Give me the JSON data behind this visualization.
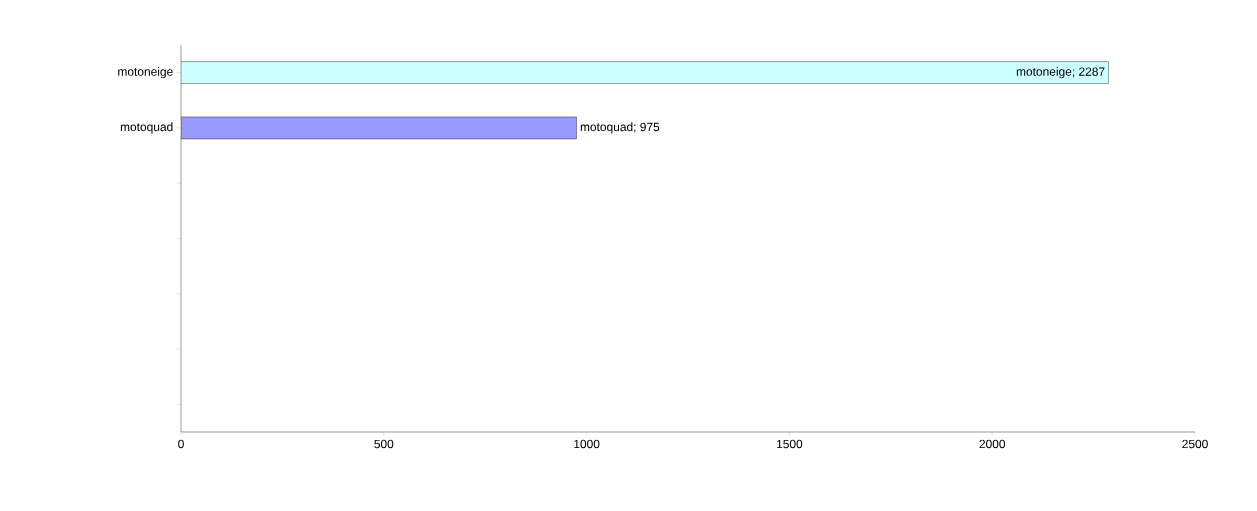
{
  "chart_data": {
    "type": "bar",
    "orientation": "horizontal",
    "categories": [
      "motoneige",
      "motoquad",
      null,
      null,
      null,
      null,
      null
    ],
    "values": [
      2287,
      975,
      null,
      null,
      null,
      null,
      null
    ],
    "colors": [
      "#ccffff",
      "#9999ff",
      "#9999ff",
      "#9999ff",
      "#9999ff",
      "#9999ff",
      "#9999ff"
    ],
    "value_labels": [
      "motoneige; 2287",
      "motoquad; 975",
      null,
      null,
      null,
      null,
      null
    ],
    "xlim": [
      0,
      2500
    ],
    "xticks": [
      0,
      500,
      1000,
      1500,
      2000,
      2500
    ],
    "grid": false
  }
}
